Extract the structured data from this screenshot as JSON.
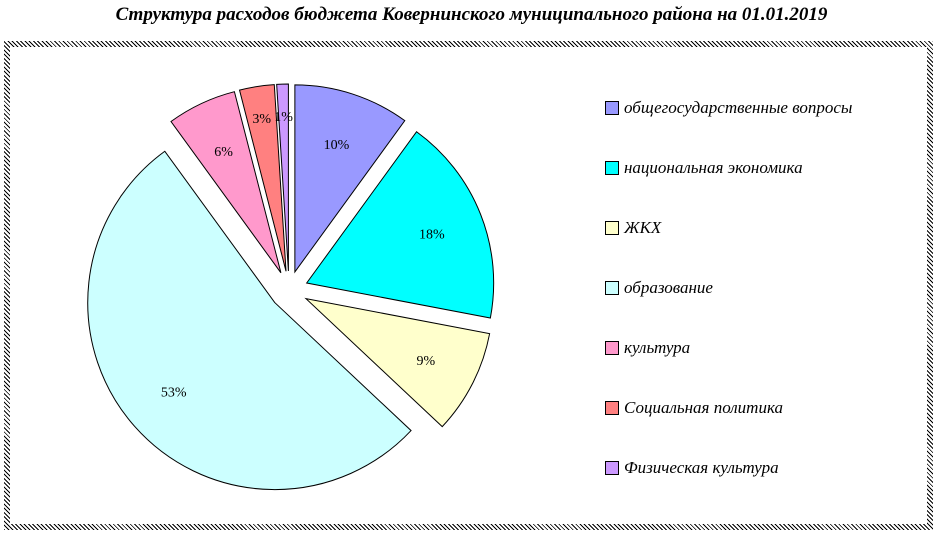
{
  "chart_data": {
    "type": "pie",
    "title": "Структура расходов бюджета Ковернинского муниципального района на 01.01.2019",
    "categories": [
      "общегосударственные вопросы",
      "национальная экономика",
      "ЖКХ",
      "образование",
      "культура",
      "Социальная политика",
      "Физическая культура"
    ],
    "values": [
      10,
      18,
      9,
      53,
      6,
      3,
      1
    ],
    "labels": [
      "10%",
      "18%",
      "9%",
      "53%",
      "6%",
      "3%",
      "1%"
    ],
    "colors": [
      "#9999FF",
      "#00FFFF",
      "#FFFFCC",
      "#CCFFFF",
      "#FF99CC",
      "#FF8080",
      "#CC99FF"
    ],
    "exploded": true,
    "legend": "right"
  }
}
